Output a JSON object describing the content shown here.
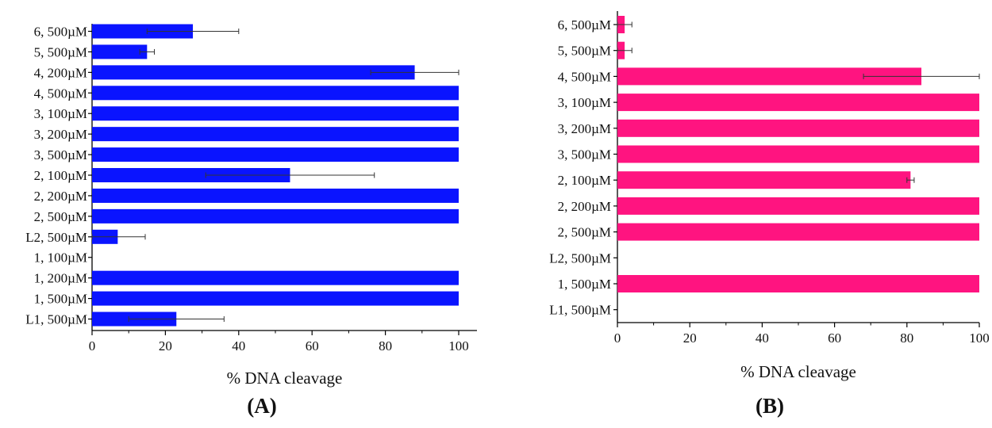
{
  "chart_data": [
    {
      "type": "bar",
      "orientation": "horizontal",
      "panel_label": "(A)",
      "xlabel": "% DNA cleavage",
      "ylabel": "",
      "xlim": [
        0,
        105
      ],
      "xticks": [
        "0",
        "20",
        "40",
        "60",
        "80",
        "100"
      ],
      "bar_color": "#0a14ff",
      "categories": [
        "6, 500µM",
        "5, 500µM",
        "4, 200µM",
        "4, 500µM",
        "3, 100µM",
        "3, 200µM",
        "3, 500µM",
        "2, 100µM",
        "2, 200µM",
        "2, 500µM",
        "L2, 500µM",
        "1, 100µM",
        "1, 200µM",
        "1, 500µM",
        "L1, 500µM"
      ],
      "values": [
        27.5,
        15,
        88,
        100,
        100,
        100,
        100,
        54,
        100,
        100,
        7,
        0,
        100,
        100,
        23
      ],
      "errors": [
        12.5,
        2,
        12,
        0,
        0,
        0,
        0,
        23,
        0,
        0,
        7.5,
        0,
        0,
        0,
        13
      ]
    },
    {
      "type": "bar",
      "orientation": "horizontal",
      "panel_label": "(B)",
      "xlabel": "% DNA cleavage",
      "ylabel": "",
      "xlim": [
        0,
        100
      ],
      "xticks": [
        "0",
        "20",
        "40",
        "60",
        "80",
        "100"
      ],
      "bar_color": "#ff1480",
      "categories": [
        "6, 500µM",
        "5, 500µM",
        "4, 500µM",
        "3, 100µM",
        "3, 200µM",
        "3, 500µM",
        "2, 100µM",
        "2, 200µM",
        "2, 500µM",
        "L2, 500µM",
        "1, 500µM",
        "L1, 500µM"
      ],
      "values": [
        2,
        2,
        84,
        100,
        100,
        100,
        81,
        100,
        100,
        0,
        100,
        0
      ],
      "errors": [
        2,
        2,
        16,
        0,
        0,
        0,
        1,
        0,
        0,
        0,
        0,
        0
      ]
    }
  ]
}
